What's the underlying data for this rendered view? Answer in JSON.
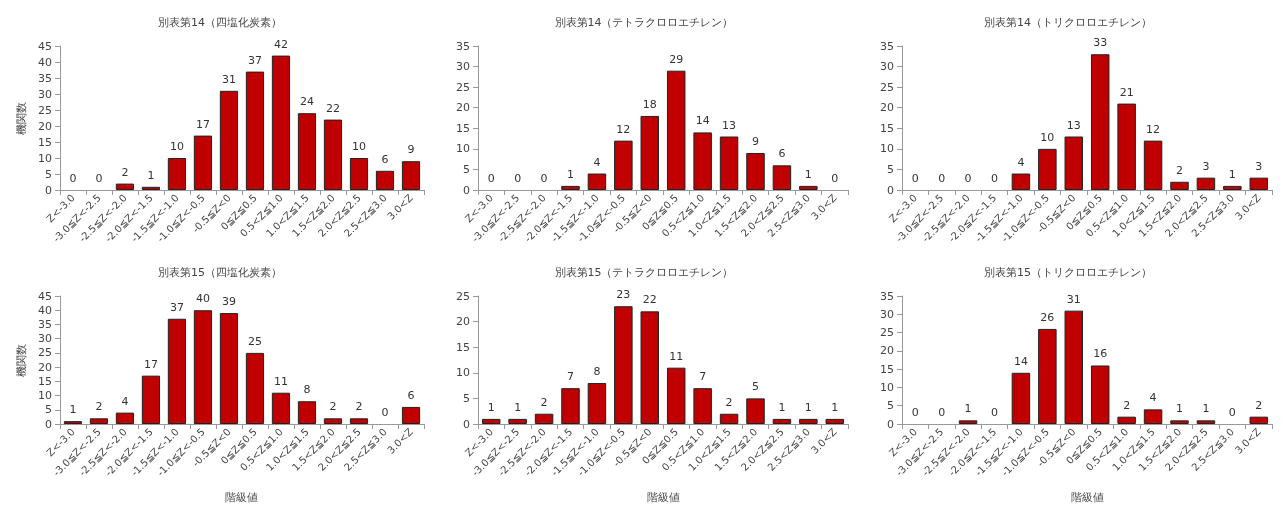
{
  "chart_data": [
    {
      "type": "bar",
      "title": "別表第14（四塩化炭素）",
      "ylabel": "機関数",
      "categories": [
        "Z<-3.0",
        "-3.0≦Z<-2.5",
        "-2.5≦Z<-2.0",
        "-2.0≦Z<-1.5",
        "-1.5≦Z<-1.0",
        "-1.0≦Z<-0.5",
        "-0.5≦Z<0",
        "0≦Z≦0.5",
        "0.5<Z≦1.0",
        "1.0<Z≦1.5",
        "1.5<Z≦2.0",
        "2.0<Z≦2.5",
        "2.5<Z≦3.0",
        "3.0<Z"
      ],
      "values": [
        0,
        0,
        2,
        1,
        10,
        17,
        31,
        37,
        42,
        24,
        22,
        10,
        6,
        9
      ],
      "color": "#c00000",
      "ylim": [
        0,
        45
      ],
      "yticks": [
        0,
        5,
        10,
        15,
        20,
        25,
        30,
        35,
        40,
        45
      ],
      "data_labels": true
    },
    {
      "type": "bar",
      "title": "別表第14（テトラクロロエチレン）",
      "categories": [
        "Z<-3.0",
        "-3.0≦Z<-2.5",
        "-2.5≦Z<-2.0",
        "-2.0≦Z<-1.5",
        "-1.5≦Z<-1.0",
        "-1.0≦Z<-0.5",
        "-0.5≦Z<0",
        "0≦Z≦0.5",
        "0.5<Z≦1.0",
        "1.0<Z≦1.5",
        "1.5<Z≦2.0",
        "2.0<Z≦2.5",
        "2.5<Z≦3.0",
        "3.0<Z"
      ],
      "values": [
        0,
        0,
        0,
        1,
        4,
        12,
        18,
        29,
        14,
        13,
        9,
        6,
        1,
        0
      ],
      "color": "#c00000",
      "ylim": [
        0,
        35
      ],
      "yticks": [
        0,
        5,
        10,
        15,
        20,
        25,
        30,
        35
      ],
      "data_labels": true
    },
    {
      "type": "bar",
      "title": "別表第14（トリクロロエチレン）",
      "categories": [
        "Z<-3.0",
        "-3.0≦Z<-2.5",
        "-2.5≦Z<-2.0",
        "-2.0≦Z<-1.5",
        "-1.5≦Z<-1.0",
        "-1.0≦Z<-0.5",
        "-0.5≦Z<0",
        "0≦Z≦0.5",
        "0.5<Z≦1.0",
        "1.0<Z≦1.5",
        "1.5<Z≦2.0",
        "2.0<Z≦2.5",
        "2.5<Z≦3.0",
        "3.0<Z"
      ],
      "values": [
        0,
        0,
        0,
        0,
        4,
        10,
        13,
        33,
        21,
        12,
        2,
        3,
        1,
        3
      ],
      "color": "#c00000",
      "ylim": [
        0,
        35
      ],
      "yticks": [
        0,
        5,
        10,
        15,
        20,
        25,
        30,
        35
      ],
      "data_labels": true
    },
    {
      "type": "bar",
      "title": "別表第15（四塩化炭素）",
      "ylabel": "機関数",
      "xlabel": "階級値",
      "categories": [
        "Z<-3.0",
        "-3.0≦Z<-2.5",
        "-2.5≦Z<-2.0",
        "-2.0≦Z<-1.5",
        "-1.5≦Z<-1.0",
        "-1.0≦Z<-0.5",
        "-0.5≦Z<0",
        "0≦Z≦0.5",
        "0.5<Z≦1.0",
        "1.0<Z≦1.5",
        "1.5<Z≦2.0",
        "2.0<Z≦2.5",
        "2.5<Z≦3.0",
        "3.0<Z"
      ],
      "values": [
        1,
        2,
        4,
        17,
        37,
        40,
        39,
        25,
        11,
        8,
        2,
        2,
        0,
        6
      ],
      "color": "#c00000",
      "ylim": [
        0,
        45
      ],
      "yticks": [
        0,
        5,
        10,
        15,
        20,
        25,
        30,
        35,
        40,
        45
      ],
      "data_labels": true
    },
    {
      "type": "bar",
      "title": "別表第15（テトラクロロエチレン）",
      "xlabel": "階級値",
      "categories": [
        "Z<-3.0",
        "-3.0≦Z<-2.5",
        "-2.5≦Z<-2.0",
        "-2.0≦Z<-1.5",
        "-1.5≦Z<-1.0",
        "-1.0≦Z<-0.5",
        "-0.5≦Z<0",
        "0≦Z≦0.5",
        "0.5<Z≦1.0",
        "1.0<Z≦1.5",
        "1.5<Z≦2.0",
        "2.0<Z≦2.5",
        "2.5<Z≦3.0",
        "3.0<Z"
      ],
      "values": [
        1,
        1,
        2,
        7,
        8,
        23,
        22,
        11,
        7,
        2,
        5,
        1,
        1,
        1
      ],
      "color": "#c00000",
      "ylim": [
        0,
        25
      ],
      "yticks": [
        0,
        5,
        10,
        15,
        20,
        25
      ],
      "data_labels": true
    },
    {
      "type": "bar",
      "title": "別表第15（トリクロロエチレン）",
      "xlabel": "階級値",
      "categories": [
        "Z<-3.0",
        "-3.0≦Z<-2.5",
        "-2.5≦Z<-2.0",
        "-2.0≦Z<-1.5",
        "-1.5≦Z<-1.0",
        "-1.0≦Z<-0.5",
        "-0.5≦Z<0",
        "0≦Z≦0.5",
        "0.5<Z≦1.0",
        "1.0<Z≦1.5",
        "1.5<Z≦2.0",
        "2.0<Z≦2.5",
        "2.5<Z≦3.0",
        "3.0<Z"
      ],
      "values": [
        0,
        0,
        1,
        0,
        14,
        26,
        31,
        16,
        2,
        4,
        1,
        1,
        0,
        2
      ],
      "color": "#c00000",
      "ylim": [
        0,
        35
      ],
      "yticks": [
        0,
        5,
        10,
        15,
        20,
        25,
        30,
        35
      ],
      "data_labels": true
    }
  ]
}
